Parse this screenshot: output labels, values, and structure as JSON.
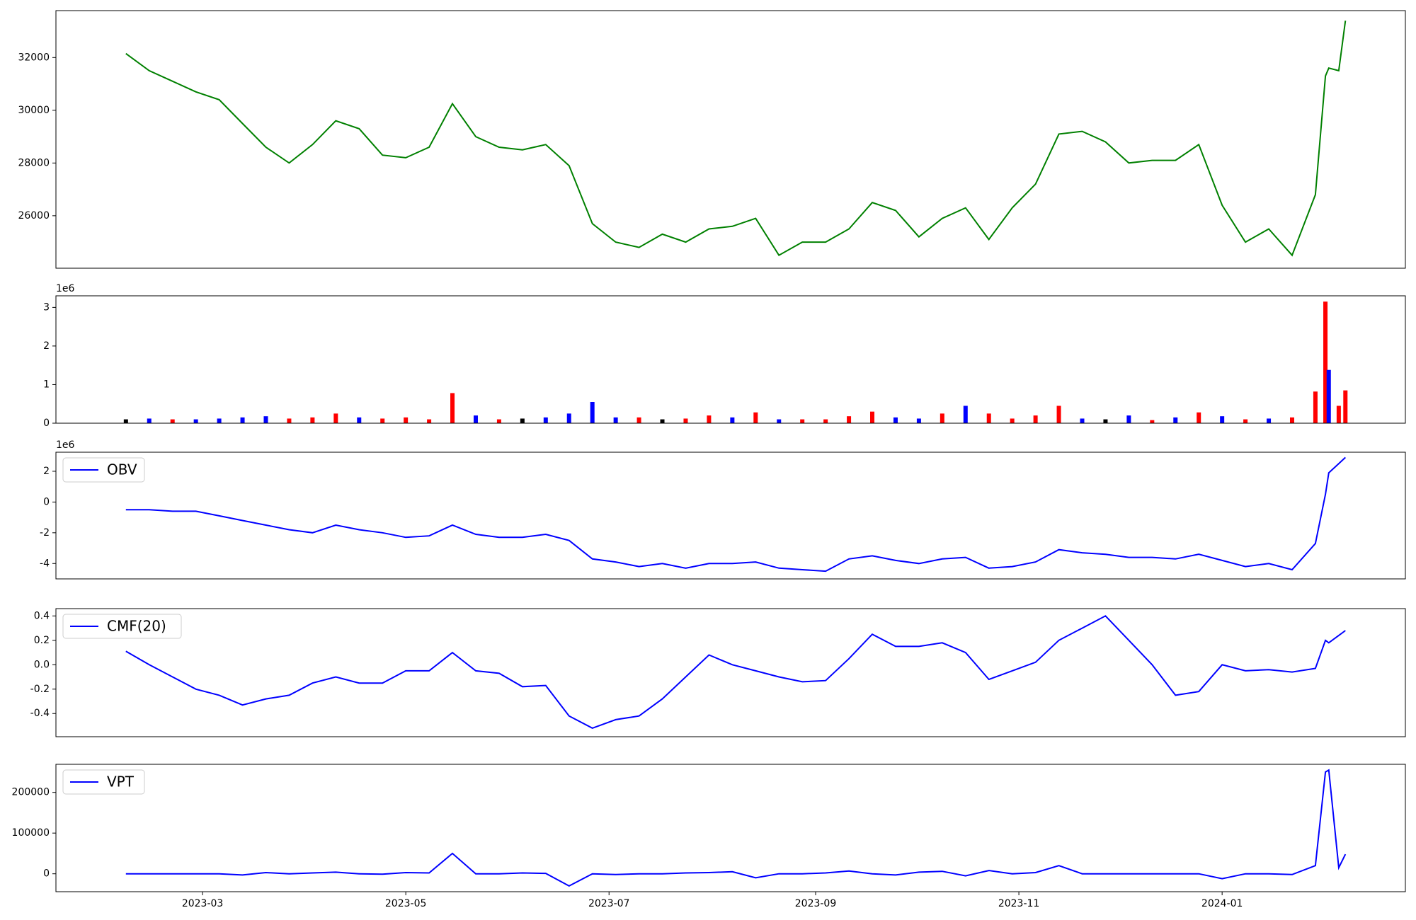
{
  "chart_data": [
    {
      "type": "line",
      "color": "green",
      "x": [
        "2023-02-06",
        "2023-02-13",
        "2023-02-20",
        "2023-02-27",
        "2023-03-06",
        "2023-03-13",
        "2023-03-20",
        "2023-03-27",
        "2023-04-03",
        "2023-04-10",
        "2023-04-17",
        "2023-04-24",
        "2023-05-01",
        "2023-05-08",
        "2023-05-15",
        "2023-05-22",
        "2023-05-29",
        "2023-06-05",
        "2023-06-12",
        "2023-06-19",
        "2023-06-26",
        "2023-07-03",
        "2023-07-10",
        "2023-07-17",
        "2023-07-24",
        "2023-07-31",
        "2023-08-07",
        "2023-08-14",
        "2023-08-21",
        "2023-08-28",
        "2023-09-04",
        "2023-09-11",
        "2023-09-18",
        "2023-09-25",
        "2023-10-02",
        "2023-10-09",
        "2023-10-16",
        "2023-10-23",
        "2023-10-30",
        "2023-11-06",
        "2023-11-13",
        "2023-11-20",
        "2023-11-27",
        "2023-12-04",
        "2023-12-11",
        "2023-12-18",
        "2023-12-25",
        "2024-01-01",
        "2024-01-08",
        "2024-01-15",
        "2024-01-22",
        "2024-01-29",
        "2024-02-01",
        "2024-02-02",
        "2024-02-05",
        "2024-02-07"
      ],
      "values": [
        32150,
        31500,
        31100,
        30700,
        30400,
        29500,
        28600,
        28000,
        28700,
        29600,
        29300,
        28300,
        28200,
        28600,
        30250,
        29000,
        28600,
        28500,
        28700,
        27900,
        25700,
        25000,
        24800,
        25300,
        25000,
        25500,
        25600,
        25900,
        24500,
        25000,
        25000,
        25500,
        26500,
        26200,
        25200,
        25900,
        26300,
        25100,
        26300,
        27200,
        29100,
        29200,
        28800,
        28000,
        28100,
        28100,
        28700,
        26400,
        25000,
        25500,
        24500,
        26800,
        31300,
        31600,
        31500,
        33400
      ],
      "xlim": [
        "2023-01-16",
        "2024-02-25"
      ],
      "ylim": [
        24010,
        33780
      ],
      "yticks": [
        26000,
        28000,
        30000,
        32000
      ]
    },
    {
      "type": "bar",
      "y_offset_label": "1e6",
      "x": [
        "2023-02-06",
        "2023-02-13",
        "2023-02-20",
        "2023-02-27",
        "2023-03-06",
        "2023-03-13",
        "2023-03-20",
        "2023-03-27",
        "2023-04-03",
        "2023-04-10",
        "2023-04-17",
        "2023-04-24",
        "2023-05-01",
        "2023-05-08",
        "2023-05-15",
        "2023-05-22",
        "2023-05-29",
        "2023-06-05",
        "2023-06-12",
        "2023-06-19",
        "2023-06-26",
        "2023-07-03",
        "2023-07-10",
        "2023-07-17",
        "2023-07-24",
        "2023-07-31",
        "2023-08-07",
        "2023-08-14",
        "2023-08-21",
        "2023-08-28",
        "2023-09-04",
        "2023-09-11",
        "2023-09-18",
        "2023-09-25",
        "2023-10-02",
        "2023-10-09",
        "2023-10-16",
        "2023-10-23",
        "2023-10-30",
        "2023-11-06",
        "2023-11-13",
        "2023-11-20",
        "2023-11-27",
        "2023-12-04",
        "2023-12-11",
        "2023-12-18",
        "2023-12-25",
        "2024-01-01",
        "2024-01-08",
        "2024-01-15",
        "2024-01-22",
        "2024-01-29",
        "2024-02-01",
        "2024-02-02",
        "2024-02-05",
        "2024-02-07"
      ],
      "values": [
        0.1,
        0.12,
        0.1,
        0.1,
        0.12,
        0.15,
        0.18,
        0.12,
        0.15,
        0.25,
        0.15,
        0.12,
        0.15,
        0.1,
        0.78,
        0.2,
        0.1,
        0.12,
        0.15,
        0.25,
        0.55,
        0.15,
        0.15,
        0.1,
        0.12,
        0.2,
        0.15,
        0.28,
        0.1,
        0.1,
        0.1,
        0.18,
        0.3,
        0.15,
        0.12,
        0.25,
        0.45,
        0.25,
        0.12,
        0.2,
        0.45,
        0.12,
        0.1,
        0.2,
        0.08,
        0.15,
        0.28,
        0.18,
        0.1,
        0.12,
        0.15,
        0.82,
        3.15,
        1.38,
        0.45,
        0.85
      ],
      "colors": [
        "black",
        "blue",
        "red",
        "blue",
        "blue",
        "blue",
        "blue",
        "red",
        "red",
        "red",
        "blue",
        "red",
        "red",
        "red",
        "red",
        "blue",
        "red",
        "black",
        "blue",
        "blue",
        "blue",
        "blue",
        "red",
        "black",
        "red",
        "red",
        "blue",
        "red",
        "blue",
        "red",
        "red",
        "red",
        "red",
        "blue",
        "blue",
        "red",
        "blue",
        "red",
        "red",
        "red",
        "red",
        "blue",
        "black",
        "blue",
        "red",
        "blue",
        "red",
        "blue",
        "red",
        "blue",
        "red",
        "red",
        "red",
        "blue",
        "red",
        "red"
      ],
      "xlim": [
        "2023-01-16",
        "2024-02-25"
      ],
      "ylim": [
        0,
        3.3
      ],
      "yticks": [
        0,
        1,
        2,
        3
      ]
    },
    {
      "type": "line",
      "y_offset_label": "1e6",
      "legend": "upper left",
      "x": [
        "2023-02-06",
        "2023-02-13",
        "2023-02-20",
        "2023-02-27",
        "2023-03-06",
        "2023-03-13",
        "2023-03-20",
        "2023-03-27",
        "2023-04-03",
        "2023-04-10",
        "2023-04-17",
        "2023-04-24",
        "2023-05-01",
        "2023-05-08",
        "2023-05-15",
        "2023-05-22",
        "2023-05-29",
        "2023-06-05",
        "2023-06-12",
        "2023-06-19",
        "2023-06-26",
        "2023-07-03",
        "2023-07-10",
        "2023-07-17",
        "2023-07-24",
        "2023-07-31",
        "2023-08-07",
        "2023-08-14",
        "2023-08-21",
        "2023-08-28",
        "2023-09-04",
        "2023-09-11",
        "2023-09-18",
        "2023-09-25",
        "2023-10-02",
        "2023-10-09",
        "2023-10-16",
        "2023-10-23",
        "2023-10-30",
        "2023-11-06",
        "2023-11-13",
        "2023-11-20",
        "2023-11-27",
        "2023-12-04",
        "2023-12-11",
        "2023-12-18",
        "2023-12-25",
        "2024-01-01",
        "2024-01-08",
        "2024-01-15",
        "2024-01-22",
        "2024-01-29",
        "2024-02-01",
        "2024-02-02",
        "2024-02-05",
        "2024-02-07"
      ],
      "series": [
        {
          "name": "OBV",
          "color": "blue",
          "values": [
            -0.5,
            -0.5,
            -0.6,
            -0.6,
            -0.9,
            -1.2,
            -1.5,
            -1.8,
            -2.0,
            -1.5,
            -1.8,
            -2.0,
            -2.3,
            -2.2,
            -1.5,
            -2.1,
            -2.3,
            -2.3,
            -2.1,
            -2.5,
            -3.7,
            -3.9,
            -4.2,
            -4.0,
            -4.3,
            -4.0,
            -4.0,
            -3.9,
            -4.3,
            -4.4,
            -4.5,
            -3.7,
            -3.5,
            -3.8,
            -4.0,
            -3.7,
            -3.6,
            -4.3,
            -4.2,
            -3.9,
            -3.1,
            -3.3,
            -3.4,
            -3.6,
            -3.6,
            -3.7,
            -3.4,
            -3.8,
            -4.2,
            -4.0,
            -4.4,
            -2.7,
            0.5,
            1.9,
            2.5,
            2.9
          ]
        }
      ],
      "xlim": [
        "2023-01-16",
        "2024-02-25"
      ],
      "ylim": [
        -5.0,
        3.24
      ],
      "yticks": [
        -4,
        -2,
        0,
        2
      ]
    },
    {
      "type": "line",
      "legend": "upper left",
      "x": [
        "2023-02-06",
        "2023-02-13",
        "2023-02-20",
        "2023-02-27",
        "2023-03-06",
        "2023-03-13",
        "2023-03-20",
        "2023-03-27",
        "2023-04-03",
        "2023-04-10",
        "2023-04-17",
        "2023-04-24",
        "2023-05-01",
        "2023-05-08",
        "2023-05-15",
        "2023-05-22",
        "2023-05-29",
        "2023-06-05",
        "2023-06-12",
        "2023-06-19",
        "2023-06-26",
        "2023-07-03",
        "2023-07-10",
        "2023-07-17",
        "2023-07-24",
        "2023-07-31",
        "2023-08-07",
        "2023-08-14",
        "2023-08-21",
        "2023-08-28",
        "2023-09-04",
        "2023-09-11",
        "2023-09-18",
        "2023-09-25",
        "2023-10-02",
        "2023-10-09",
        "2023-10-16",
        "2023-10-23",
        "2023-10-30",
        "2023-11-06",
        "2023-11-13",
        "2023-11-20",
        "2023-11-27",
        "2023-12-04",
        "2023-12-11",
        "2023-12-18",
        "2023-12-25",
        "2024-01-01",
        "2024-01-08",
        "2024-01-15",
        "2024-01-22",
        "2024-01-29",
        "2024-02-01",
        "2024-02-02",
        "2024-02-05",
        "2024-02-07"
      ],
      "series": [
        {
          "name": "CMF(20)",
          "color": "blue",
          "values": [
            0.11,
            0.0,
            -0.1,
            -0.2,
            -0.25,
            -0.33,
            -0.28,
            -0.25,
            -0.15,
            -0.1,
            -0.15,
            -0.15,
            -0.05,
            -0.05,
            0.1,
            -0.05,
            -0.07,
            -0.18,
            -0.17,
            -0.42,
            -0.52,
            -0.45,
            -0.42,
            -0.28,
            -0.1,
            0.08,
            0.0,
            -0.05,
            -0.1,
            -0.14,
            -0.13,
            0.05,
            0.25,
            0.15,
            0.15,
            0.18,
            0.1,
            -0.12,
            -0.05,
            0.02,
            0.2,
            0.3,
            0.4,
            0.2,
            0.0,
            -0.25,
            -0.22,
            0.0,
            -0.05,
            -0.04,
            -0.06,
            -0.03,
            0.2,
            0.18,
            0.24,
            0.28
          ]
        }
      ],
      "xlim": [
        "2023-01-16",
        "2024-02-25"
      ],
      "ylim": [
        -0.59,
        0.46
      ],
      "yticks": [
        -0.4,
        -0.2,
        {
          "value": 0,
          "label": "0.0"
        },
        0.2,
        0.4
      ]
    },
    {
      "type": "line",
      "legend": "upper left",
      "x": [
        "2023-02-06",
        "2023-02-13",
        "2023-02-20",
        "2023-02-27",
        "2023-03-06",
        "2023-03-13",
        "2023-03-20",
        "2023-03-27",
        "2023-04-03",
        "2023-04-10",
        "2023-04-17",
        "2023-04-24",
        "2023-05-01",
        "2023-05-08",
        "2023-05-15",
        "2023-05-22",
        "2023-05-29",
        "2023-06-05",
        "2023-06-12",
        "2023-06-19",
        "2023-06-26",
        "2023-07-03",
        "2023-07-10",
        "2023-07-17",
        "2023-07-24",
        "2023-07-31",
        "2023-08-07",
        "2023-08-14",
        "2023-08-21",
        "2023-08-28",
        "2023-09-04",
        "2023-09-11",
        "2023-09-18",
        "2023-09-25",
        "2023-10-02",
        "2023-10-09",
        "2023-10-16",
        "2023-10-23",
        "2023-10-30",
        "2023-11-06",
        "2023-11-13",
        "2023-11-20",
        "2023-11-27",
        "2023-12-04",
        "2023-12-11",
        "2023-12-18",
        "2023-12-25",
        "2024-01-01",
        "2024-01-08",
        "2024-01-15",
        "2024-01-22",
        "2024-01-29",
        "2024-02-01",
        "2024-02-02",
        "2024-02-05",
        "2024-02-07"
      ],
      "series": [
        {
          "name": "VPT",
          "color": "blue",
          "values": [
            0,
            0,
            0,
            0,
            0,
            -3000,
            3000,
            0,
            2000,
            4000,
            0,
            -1000,
            3000,
            2000,
            50000,
            0,
            0,
            2000,
            1000,
            -30000,
            0,
            -2000,
            0,
            0,
            2000,
            3000,
            5000,
            -10000,
            0,
            0,
            2000,
            7000,
            0,
            -3000,
            4000,
            6000,
            -5000,
            8000,
            0,
            3000,
            20000,
            0,
            0,
            0,
            0,
            0,
            0,
            -12000,
            0,
            0,
            -2000,
            20000,
            250000,
            255000,
            15000,
            48000
          ]
        }
      ],
      "xlim": [
        "2023-01-16",
        "2024-02-25"
      ],
      "ylim": [
        -44000,
        269000
      ],
      "yticks": [
        0,
        100000,
        200000
      ],
      "xticks": [
        {
          "value": "2023-03-01",
          "label": "2023-03"
        },
        {
          "value": "2023-05-01",
          "label": "2023-05"
        },
        {
          "value": "2023-07-01",
          "label": "2023-07"
        },
        {
          "value": "2023-09-01",
          "label": "2023-09"
        },
        {
          "value": "2023-11-01",
          "label": "2023-11"
        },
        {
          "value": "2024-01-01",
          "label": "2024-01"
        }
      ]
    }
  ]
}
